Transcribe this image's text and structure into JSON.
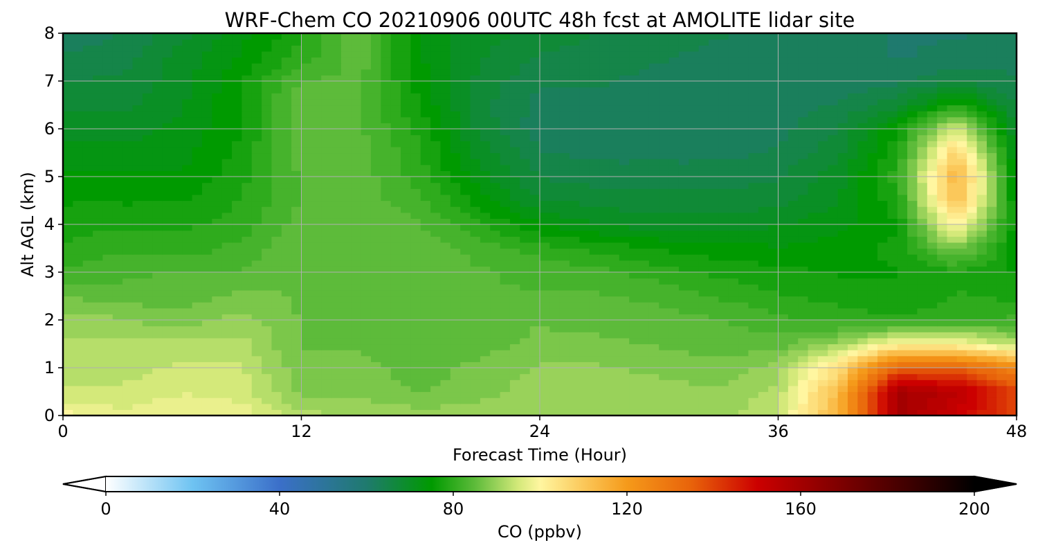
{
  "chart_data": {
    "type": "heatmap",
    "title": "WRF-Chem CO  20210906 00UTC 48h fcst at AMOLITE lidar site",
    "xlabel": "Forecast Time (Hour)",
    "ylabel": "Alt AGL (km)",
    "xlim": [
      0,
      48
    ],
    "ylim": [
      0,
      8
    ],
    "x_ticks": [
      "0",
      "12",
      "24",
      "36",
      "48"
    ],
    "y_ticks": [
      "0",
      "1",
      "2",
      "3",
      "4",
      "5",
      "6",
      "7",
      "8"
    ],
    "grid": true,
    "x": [
      0,
      3,
      6,
      9,
      12,
      15,
      18,
      21,
      24,
      27,
      30,
      33,
      36,
      39,
      42,
      45,
      48
    ],
    "y": [
      0,
      0.5,
      1,
      1.5,
      2,
      2.5,
      3,
      3.5,
      4,
      4.5,
      5,
      5.5,
      6,
      6.5,
      7,
      7.5,
      8
    ],
    "z_units": "ppbv",
    "z": [
      [
        100,
        97,
        99,
        98,
        92,
        91,
        90,
        90,
        91,
        90,
        90,
        90,
        94,
        115,
        160,
        150,
        140
      ],
      [
        94,
        94,
        96,
        95,
        88,
        88,
        86,
        88,
        90,
        90,
        90,
        89,
        92,
        112,
        160,
        155,
        140
      ],
      [
        92,
        93,
        94,
        94,
        87,
        87,
        85,
        87,
        89,
        89,
        88,
        87,
        90,
        105,
        135,
        135,
        125
      ],
      [
        92,
        92,
        93,
        92,
        86,
        86,
        84,
        85,
        87,
        87,
        86,
        85,
        85,
        90,
        100,
        100,
        92
      ],
      [
        90,
        89,
        87,
        90,
        86,
        86,
        85,
        85,
        86,
        85,
        85,
        84,
        82,
        80,
        79,
        80,
        82
      ],
      [
        86,
        85,
        85,
        87,
        86,
        86,
        84,
        84,
        84,
        84,
        83,
        81,
        79,
        78,
        77,
        79,
        78
      ],
      [
        82,
        83,
        84,
        84,
        86,
        86,
        85,
        84,
        83,
        82,
        80,
        78,
        77,
        76,
        76,
        78,
        76
      ],
      [
        79,
        81,
        80,
        82,
        86,
        86,
        85,
        83,
        80,
        78,
        76,
        75,
        74,
        75,
        77,
        88,
        75
      ],
      [
        78,
        78,
        78,
        80,
        85,
        86,
        84,
        79,
        74,
        71,
        70,
        70,
        71,
        73,
        76,
        102,
        74
      ],
      [
        76,
        76,
        76,
        79,
        84,
        85,
        82,
        75,
        69,
        68,
        67,
        67,
        68,
        71,
        78,
        112,
        73
      ],
      [
        74,
        74,
        74,
        78,
        84,
        85,
        80,
        72,
        66,
        65,
        65,
        65,
        66,
        70,
        80,
        115,
        72
      ],
      [
        72,
        72,
        73,
        77,
        85,
        85,
        79,
        70,
        64,
        63,
        63,
        63,
        64,
        68,
        78,
        108,
        70
      ],
      [
        70,
        70,
        72,
        76,
        86,
        84,
        78,
        68,
        62,
        62,
        62,
        62,
        63,
        66,
        76,
        96,
        68
      ],
      [
        68,
        68,
        71,
        76,
        86,
        84,
        76,
        67,
        63,
        63,
        63,
        62,
        63,
        64,
        68,
        78,
        66
      ],
      [
        66,
        67,
        70,
        76,
        84,
        84,
        75,
        68,
        64,
        64,
        63,
        62,
        62,
        62,
        63,
        66,
        64
      ],
      [
        64,
        65,
        70,
        74,
        80,
        85,
        74,
        69,
        66,
        65,
        64,
        63,
        62,
        62,
        61,
        62,
        63
      ],
      [
        62,
        64,
        68,
        73,
        78,
        86,
        73,
        70,
        68,
        66,
        65,
        64,
        63,
        62,
        61,
        61,
        62
      ]
    ],
    "colorbar": {
      "label": "CO  (ppbv)",
      "min": 0,
      "max": 200,
      "ticks": [
        "0",
        "40",
        "80",
        "120",
        "160",
        "200"
      ],
      "extend": "both",
      "colormap": [
        {
          "v": 0,
          "color": "#ffffff"
        },
        {
          "v": 20,
          "color": "#6ec3f2"
        },
        {
          "v": 40,
          "color": "#3b6fc9"
        },
        {
          "v": 60,
          "color": "#1f7a6e"
        },
        {
          "v": 75,
          "color": "#009a00"
        },
        {
          "v": 85,
          "color": "#5dbb3a"
        },
        {
          "v": 95,
          "color": "#d4e97a"
        },
        {
          "v": 100,
          "color": "#fff6a0"
        },
        {
          "v": 110,
          "color": "#fbc85a"
        },
        {
          "v": 120,
          "color": "#f59a1a"
        },
        {
          "v": 135,
          "color": "#e8620a"
        },
        {
          "v": 150,
          "color": "#cc0000"
        },
        {
          "v": 170,
          "color": "#7a0000"
        },
        {
          "v": 190,
          "color": "#2a0000"
        },
        {
          "v": 200,
          "color": "#000000"
        }
      ],
      "under_color": "#ffffff",
      "over_color": "#000000"
    }
  }
}
